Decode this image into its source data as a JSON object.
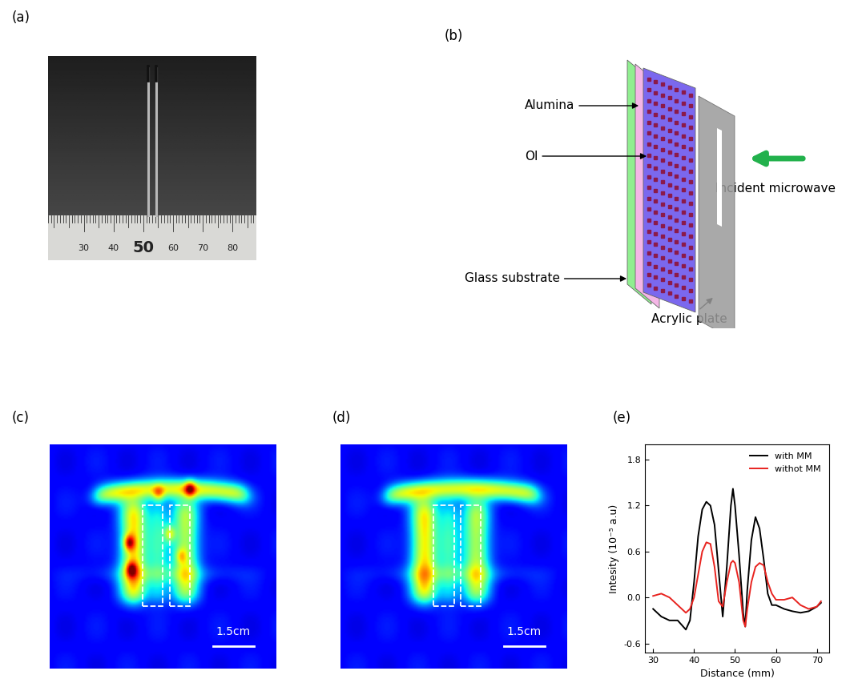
{
  "panels": {
    "a": {
      "label": "(a)",
      "ruler_ticks": [
        30,
        40,
        50,
        60,
        70,
        80
      ]
    },
    "b": {
      "label": "(b)",
      "layers": {
        "alumina": "Alumina",
        "oi": "OI",
        "glass": "Glass substrate",
        "acrylic": "Acrylic plate"
      },
      "incident": "Incident microwave"
    },
    "c": {
      "label": "(c)",
      "scale_bar": "1.5cm"
    },
    "d": {
      "label": "(d)",
      "scale_bar": "1.5cm"
    },
    "e": {
      "label": "(e)"
    }
  },
  "chart_data": {
    "type": "line",
    "x_label": "Distance (mm)",
    "y_label": "Intesity (10⁻⁵ a.u)",
    "x": [
      30,
      32,
      34,
      36,
      38,
      39,
      40,
      41,
      42,
      43,
      44,
      45,
      46,
      47,
      48,
      49,
      49.5,
      50,
      51,
      52,
      52.5,
      53,
      54,
      55,
      56,
      57,
      58,
      59,
      60,
      62,
      64,
      66,
      68,
      70,
      71
    ],
    "series": [
      {
        "name": "with MM",
        "color": "#000000",
        "values": [
          -0.15,
          -0.25,
          -0.3,
          -0.3,
          -0.42,
          -0.3,
          0.2,
          0.8,
          1.15,
          1.25,
          1.2,
          0.95,
          0.35,
          -0.25,
          0.4,
          1.2,
          1.42,
          1.2,
          0.55,
          -0.2,
          -0.38,
          0.1,
          0.75,
          1.05,
          0.9,
          0.5,
          0.05,
          -0.1,
          -0.1,
          -0.15,
          -0.18,
          -0.2,
          -0.18,
          -0.12,
          -0.07
        ]
      },
      {
        "name": "withot MM",
        "color": "#e8231f",
        "values": [
          0.02,
          0.05,
          0.0,
          -0.1,
          -0.2,
          -0.15,
          0.0,
          0.3,
          0.6,
          0.72,
          0.7,
          0.4,
          -0.05,
          -0.12,
          0.2,
          0.45,
          0.48,
          0.45,
          0.2,
          -0.3,
          -0.38,
          -0.15,
          0.2,
          0.4,
          0.45,
          0.42,
          0.2,
          0.05,
          -0.03,
          -0.03,
          0.0,
          -0.1,
          -0.15,
          -0.12,
          -0.05
        ]
      }
    ],
    "xlim": [
      28,
      73
    ],
    "xticks": [
      30,
      40,
      50,
      60,
      70
    ],
    "ylim": [
      -0.72,
      2.0
    ],
    "yticks": [
      -0.6,
      0.0,
      0.6,
      1.2,
      1.8
    ],
    "legend": "upper right"
  }
}
